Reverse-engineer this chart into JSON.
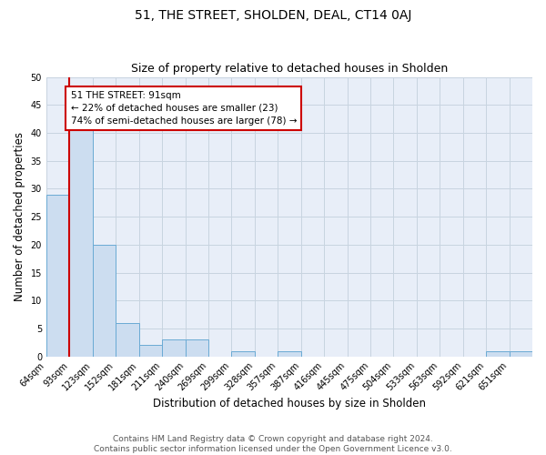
{
  "title1": "51, THE STREET, SHOLDEN, DEAL, CT14 0AJ",
  "title2": "Size of property relative to detached houses in Sholden",
  "xlabel": "Distribution of detached houses by size in Sholden",
  "ylabel": "Number of detached properties",
  "categories": [
    "64sqm",
    "93sqm",
    "123sqm",
    "152sqm",
    "181sqm",
    "211sqm",
    "240sqm",
    "269sqm",
    "299sqm",
    "328sqm",
    "357sqm",
    "387sqm",
    "416sqm",
    "445sqm",
    "475sqm",
    "504sqm",
    "533sqm",
    "563sqm",
    "592sqm",
    "621sqm",
    "651sqm"
  ],
  "values": [
    29,
    41,
    20,
    6,
    2,
    3,
    3,
    0,
    1,
    0,
    1,
    0,
    0,
    0,
    0,
    0,
    0,
    0,
    0,
    1,
    1
  ],
  "bar_color": "#ccddf0",
  "bar_edge_color": "#6aaad4",
  "red_line_color": "#cc0000",
  "annotation_box_color": "#ffffff",
  "annotation_box_edge": "#cc0000",
  "annotation_text": "51 THE STREET: 91sqm\n← 22% of detached houses are smaller (23)\n74% of semi-detached houses are larger (78) →",
  "ylim": [
    0,
    50
  ],
  "yticks": [
    0,
    5,
    10,
    15,
    20,
    25,
    30,
    35,
    40,
    45,
    50
  ],
  "grid_color": "#c8d4e0",
  "background_color": "#e8eef8",
  "footer_text": "Contains HM Land Registry data © Crown copyright and database right 2024.\nContains public sector information licensed under the Open Government Licence v3.0.",
  "title1_fontsize": 10,
  "title2_fontsize": 9,
  "xlabel_fontsize": 8.5,
  "ylabel_fontsize": 8.5,
  "annotation_fontsize": 7.5,
  "footer_fontsize": 6.5,
  "tick_fontsize": 7
}
